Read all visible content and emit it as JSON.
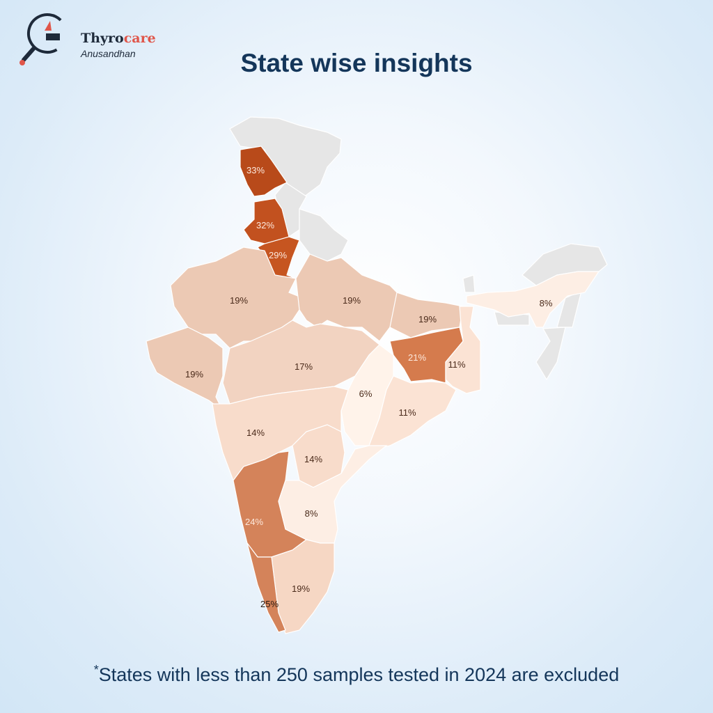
{
  "brand": {
    "name_part1": "Thyro",
    "name_part2": "care",
    "subtitle": "Anusandhan"
  },
  "title": "State wise insights",
  "footnote": {
    "marker": "*",
    "text": "States with less than 250 samples tested in 2024 are excluded"
  },
  "colors": {
    "no_data": "#e6e6e6",
    "title": "#14365a"
  },
  "states": [
    {
      "name": "Jammu & Kashmir",
      "value": "33%",
      "color": "#b84a1a",
      "text": "#fde9dd"
    },
    {
      "name": "Punjab",
      "value": "32%",
      "color": "#c2511f",
      "text": "#fde9dd"
    },
    {
      "name": "Haryana",
      "value": "29%",
      "color": "#c65520",
      "text": "#fde9dd"
    },
    {
      "name": "Rajasthan",
      "value": "19%",
      "color": "#ecc9b4",
      "text": "#4a2a1a"
    },
    {
      "name": "Uttar Pradesh",
      "value": "19%",
      "color": "#ecc9b4",
      "text": "#4a2a1a"
    },
    {
      "name": "Bihar",
      "value": "19%",
      "color": "#ecc9b4",
      "text": "#4a2a1a"
    },
    {
      "name": "Gujarat",
      "value": "19%",
      "color": "#ecc9b4",
      "text": "#4a2a1a"
    },
    {
      "name": "Madhya Pradesh",
      "value": "17%",
      "color": "#f2d3c1",
      "text": "#4a2a1a"
    },
    {
      "name": "Jharkhand",
      "value": "21%",
      "color": "#d57b4d",
      "text": "#fde9dd"
    },
    {
      "name": "West Bengal",
      "value": "11%",
      "color": "#fbe3d4",
      "text": "#4a2a1a"
    },
    {
      "name": "Chhattisgarh",
      "value": "6%",
      "color": "#fff3ea",
      "text": "#4a2a1a"
    },
    {
      "name": "Odisha",
      "value": "11%",
      "color": "#fbe3d4",
      "text": "#4a2a1a"
    },
    {
      "name": "Maharashtra",
      "value": "14%",
      "color": "#f8dccb",
      "text": "#4a2a1a"
    },
    {
      "name": "Telangana",
      "value": "14%",
      "color": "#f8dccb",
      "text": "#4a2a1a"
    },
    {
      "name": "Karnataka",
      "value": "24%",
      "color": "#d4835a",
      "text": "#fde9dd"
    },
    {
      "name": "Andhra Pradesh",
      "value": "8%",
      "color": "#fdeee4",
      "text": "#4a2a1a"
    },
    {
      "name": "Tamil Nadu",
      "value": "19%",
      "color": "#f6d7c4",
      "text": "#4a2a1a"
    },
    {
      "name": "Kerala",
      "value": "25%",
      "color": "#d4835a",
      "text": "#2a1a10"
    },
    {
      "name": "Assam",
      "value": "8%",
      "color": "#fdeee4",
      "text": "#4a2a1a"
    }
  ]
}
